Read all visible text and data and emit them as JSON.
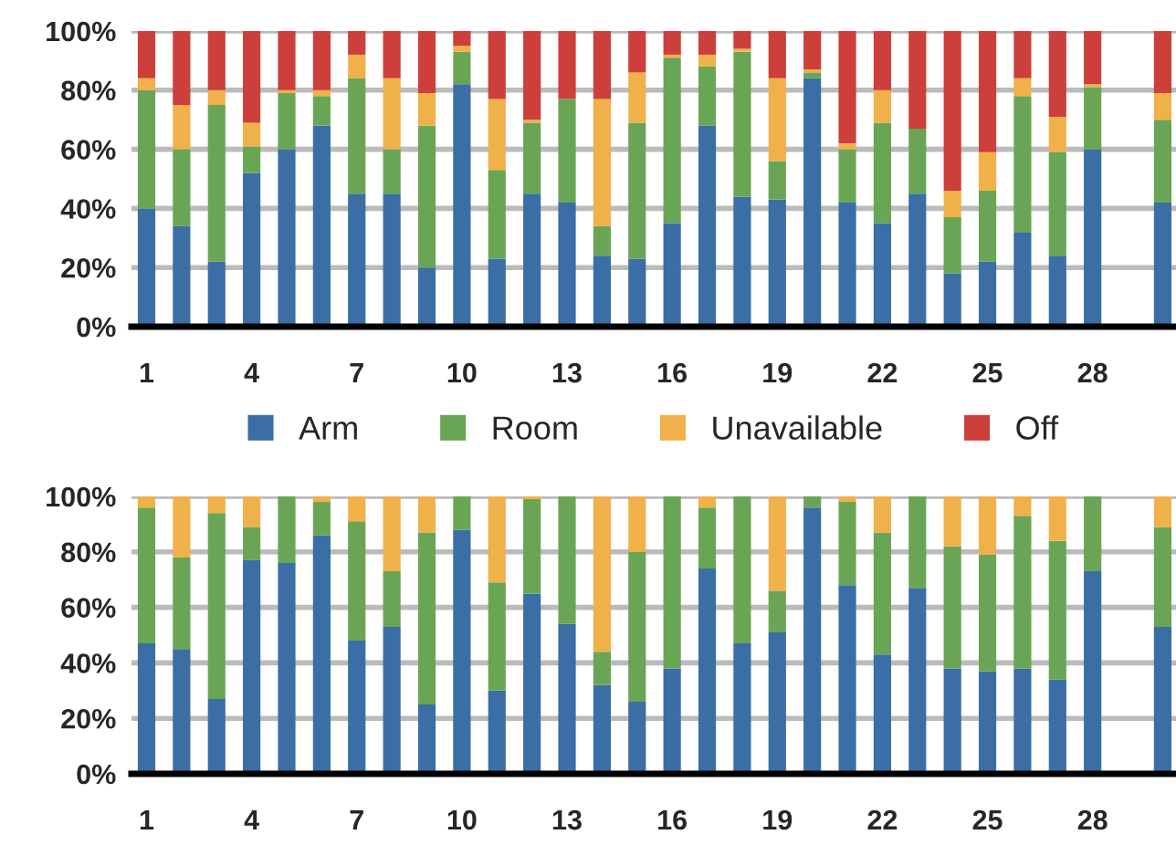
{
  "chart_data": [
    {
      "type": "bar",
      "stacked": true,
      "categories": [
        "1",
        null,
        null,
        "4",
        null,
        null,
        "7",
        null,
        null,
        "10",
        null,
        null,
        "13",
        null,
        null,
        "16",
        null,
        null,
        "19",
        null,
        null,
        "22",
        null,
        null,
        "25",
        null,
        null,
        "28",
        null,
        null
      ],
      "ylim": [
        0,
        100
      ],
      "yticks": [
        {
          "value": 0,
          "label": "0%"
        },
        {
          "value": 20,
          "label": "20%"
        },
        {
          "value": 40,
          "label": "40%"
        },
        {
          "value": 60,
          "label": "60%"
        },
        {
          "value": 80,
          "label": "80%"
        },
        {
          "value": 100,
          "label": "100%"
        }
      ],
      "grid": "y",
      "legend": "bottom",
      "series": [
        {
          "name": "Arm",
          "color": "#3a6ea5",
          "values": [
            40,
            34,
            22,
            52,
            60,
            68,
            45,
            45,
            20,
            82,
            23,
            45,
            42,
            24,
            23,
            35,
            68,
            44,
            43,
            84,
            42,
            35,
            45,
            18,
            22,
            32,
            24,
            60,
            null,
            42
          ]
        },
        {
          "name": "Room",
          "color": "#6aa555",
          "values": [
            40,
            26,
            53,
            9,
            19,
            10,
            39,
            15,
            48,
            11,
            30,
            24,
            35,
            10,
            46,
            56,
            20,
            49,
            13,
            2,
            18,
            34,
            22,
            19,
            24,
            46,
            35,
            21,
            null,
            28
          ]
        },
        {
          "name": "Unavailable",
          "color": "#f0b04a",
          "values": [
            4,
            15,
            5,
            8,
            1,
            2,
            8,
            24,
            11,
            2,
            24,
            1,
            0,
            43,
            17,
            1,
            4,
            1,
            28,
            1,
            2,
            11,
            0,
            9,
            13,
            6,
            12,
            1,
            null,
            9
          ]
        },
        {
          "name": "Off",
          "color": "#cc3f3a",
          "values": [
            16,
            25,
            20,
            31,
            20,
            20,
            8,
            16,
            21,
            5,
            23,
            30,
            23,
            23,
            14,
            8,
            8,
            6,
            16,
            13,
            38,
            20,
            33,
            54,
            41,
            16,
            29,
            18,
            null,
            21
          ]
        }
      ]
    },
    {
      "type": "bar",
      "stacked": true,
      "categories": [
        "1",
        null,
        null,
        "4",
        null,
        null,
        "7",
        null,
        null,
        "10",
        null,
        null,
        "13",
        null,
        null,
        "16",
        null,
        null,
        "19",
        null,
        null,
        "22",
        null,
        null,
        "25",
        null,
        null,
        "28",
        null,
        null
      ],
      "ylim": [
        0,
        100
      ],
      "yticks": [
        {
          "value": 0,
          "label": "0%"
        },
        {
          "value": 20,
          "label": "20%"
        },
        {
          "value": 40,
          "label": "40%"
        },
        {
          "value": 60,
          "label": "60%"
        },
        {
          "value": 80,
          "label": "80%"
        },
        {
          "value": 100,
          "label": "100%"
        }
      ],
      "grid": "y",
      "series": [
        {
          "color": "#3a6ea5",
          "values": [
            47,
            45,
            27,
            77,
            76,
            86,
            48,
            53,
            25,
            88,
            30,
            65,
            54,
            32,
            26,
            38,
            74,
            47,
            51,
            96,
            68,
            43,
            67,
            38,
            37,
            38,
            34,
            73,
            null,
            53
          ]
        },
        {
          "color": "#6aa555",
          "values": [
            49,
            33,
            67,
            12,
            24,
            12,
            43,
            20,
            62,
            12,
            39,
            34,
            46,
            12,
            54,
            62,
            22,
            53,
            15,
            4,
            30,
            44,
            33,
            44,
            42,
            55,
            50,
            27,
            null,
            36
          ]
        },
        {
          "color": "#f0b04a",
          "values": [
            4,
            22,
            6,
            11,
            0,
            2,
            9,
            27,
            13,
            0,
            31,
            1,
            0,
            56,
            20,
            0,
            4,
            0,
            34,
            0,
            2,
            13,
            0,
            18,
            21,
            7,
            16,
            0,
            null,
            11
          ]
        }
      ]
    }
  ]
}
